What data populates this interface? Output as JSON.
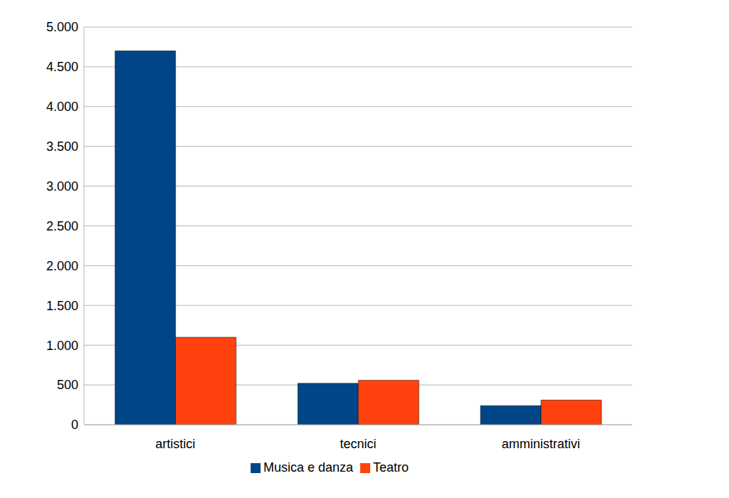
{
  "chart_data": {
    "type": "bar",
    "categories": [
      "artistici",
      "tecnici",
      "amministrativi"
    ],
    "series": [
      {
        "name": "Musica e danza",
        "color": "#004586",
        "values": [
          4700,
          520,
          240
        ]
      },
      {
        "name": "Teatro",
        "color": "#ff420e",
        "values": [
          1100,
          560,
          310
        ]
      }
    ],
    "ylim": [
      0,
      5000
    ],
    "yticks": [
      0,
      500,
      {
        "value": 1000,
        "label": "1.000"
      },
      {
        "value": 1500,
        "label": "1.500"
      },
      {
        "value": 2000,
        "label": "2.000"
      },
      {
        "value": 2500,
        "label": "2.500"
      },
      {
        "value": 3000,
        "label": "3.000"
      },
      {
        "value": 3500,
        "label": "3.500"
      },
      {
        "value": 4000,
        "label": "4.000"
      },
      {
        "value": 4500,
        "label": "4.500"
      },
      {
        "value": 5000,
        "label": "5.000"
      }
    ],
    "grid": true,
    "legend": "bottom"
  }
}
